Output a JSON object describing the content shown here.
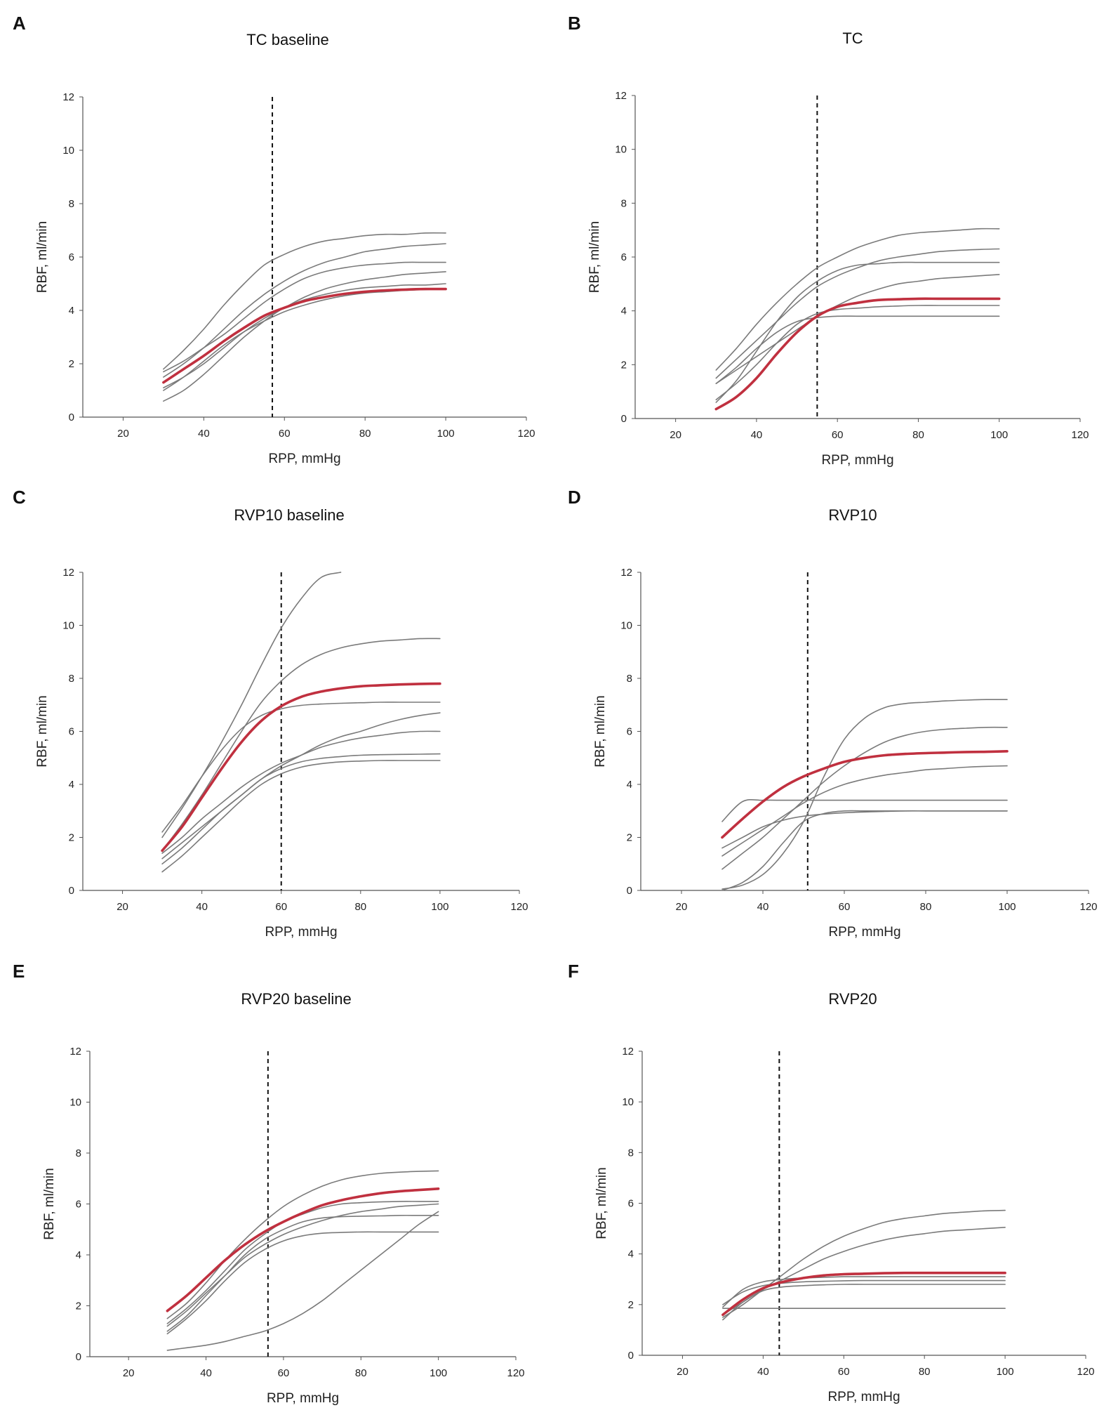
{
  "figure": {
    "panels": [
      {
        "letter": "A",
        "title": "TC baseline"
      },
      {
        "letter": "B",
        "title": "TC"
      },
      {
        "letter": "C",
        "title": "RVP10 baseline"
      },
      {
        "letter": "D",
        "title": "RVP10"
      },
      {
        "letter": "E",
        "title": "RVP20 baseline"
      },
      {
        "letter": "F",
        "title": "RVP20"
      }
    ]
  },
  "colors": {
    "individual": "#7a7a7a",
    "mean": "#c0303f",
    "threshold": "#111111"
  },
  "chart_data": [
    {
      "type": "line",
      "panel": "A",
      "title": "TC baseline",
      "xlabel": "RPP, mmHg",
      "ylabel": "RBF, ml/min",
      "xlim": [
        10,
        120
      ],
      "ylim": [
        0,
        12
      ],
      "xticks": [
        20,
        40,
        60,
        80,
        100,
        120
      ],
      "yticks": [
        0,
        2,
        4,
        6,
        8,
        10,
        12
      ],
      "threshold_x": 57,
      "x": [
        30,
        35,
        40,
        45,
        50,
        55,
        60,
        65,
        70,
        75,
        80,
        85,
        90,
        95,
        100
      ],
      "series": [
        {
          "name": "individual",
          "values": [
            1.8,
            2.5,
            3.3,
            4.2,
            5.0,
            5.7,
            6.1,
            6.4,
            6.6,
            6.7,
            6.8,
            6.85,
            6.85,
            6.9,
            6.9
          ]
        },
        {
          "name": "individual",
          "values": [
            1.5,
            2.0,
            2.6,
            3.3,
            4.0,
            4.6,
            5.1,
            5.5,
            5.8,
            6.0,
            6.2,
            6.3,
            6.4,
            6.45,
            6.5
          ]
        },
        {
          "name": "individual",
          "values": [
            1.7,
            2.1,
            2.6,
            3.1,
            3.7,
            4.3,
            4.8,
            5.2,
            5.45,
            5.6,
            5.7,
            5.75,
            5.8,
            5.8,
            5.8
          ]
        },
        {
          "name": "individual",
          "values": [
            1.1,
            1.5,
            2.0,
            2.6,
            3.2,
            3.7,
            4.1,
            4.5,
            4.8,
            5.0,
            5.15,
            5.25,
            5.35,
            5.4,
            5.45
          ]
        },
        {
          "name": "individual",
          "values": [
            0.6,
            1.0,
            1.6,
            2.3,
            3.0,
            3.6,
            4.1,
            4.4,
            4.6,
            4.75,
            4.85,
            4.9,
            4.95,
            4.95,
            5.0
          ]
        },
        {
          "name": "individual",
          "values": [
            1.0,
            1.5,
            2.1,
            2.7,
            3.2,
            3.6,
            3.95,
            4.2,
            4.4,
            4.55,
            4.65,
            4.7,
            4.75,
            4.78,
            4.8
          ]
        },
        {
          "name": "mean",
          "values": [
            1.3,
            1.8,
            2.3,
            2.85,
            3.35,
            3.8,
            4.1,
            4.35,
            4.5,
            4.62,
            4.7,
            4.75,
            4.78,
            4.8,
            4.8
          ]
        }
      ]
    },
    {
      "type": "line",
      "panel": "B",
      "title": "TC",
      "xlabel": "RPP, mmHg",
      "ylabel": "RBF, ml/min",
      "xlim": [
        10,
        120
      ],
      "ylim": [
        0,
        12
      ],
      "xticks": [
        20,
        40,
        60,
        80,
        100,
        120
      ],
      "yticks": [
        0,
        2,
        4,
        6,
        8,
        10,
        12
      ],
      "threshold_x": 55,
      "x": [
        30,
        35,
        40,
        45,
        50,
        55,
        60,
        65,
        70,
        75,
        80,
        85,
        90,
        95,
        100
      ],
      "series": [
        {
          "name": "individual",
          "values": [
            1.8,
            2.6,
            3.5,
            4.3,
            5.0,
            5.6,
            6.0,
            6.35,
            6.6,
            6.8,
            6.9,
            6.95,
            7.0,
            7.05,
            7.05
          ]
        },
        {
          "name": "individual",
          "values": [
            1.5,
            2.2,
            2.9,
            3.6,
            4.3,
            4.9,
            5.3,
            5.6,
            5.85,
            6.0,
            6.1,
            6.2,
            6.25,
            6.28,
            6.3
          ]
        },
        {
          "name": "individual",
          "values": [
            0.6,
            1.4,
            2.5,
            3.6,
            4.5,
            5.1,
            5.5,
            5.7,
            5.75,
            5.8,
            5.8,
            5.8,
            5.8,
            5.8,
            5.8
          ]
        },
        {
          "name": "individual",
          "values": [
            1.3,
            1.8,
            2.3,
            2.8,
            3.3,
            3.8,
            4.2,
            4.55,
            4.8,
            5.0,
            5.1,
            5.2,
            5.25,
            5.3,
            5.35
          ]
        },
        {
          "name": "individual",
          "values": [
            0.7,
            1.3,
            2.0,
            2.8,
            3.5,
            3.9,
            4.05,
            4.1,
            4.15,
            4.18,
            4.2,
            4.2,
            4.2,
            4.2,
            4.2
          ]
        },
        {
          "name": "individual",
          "values": [
            1.3,
            1.9,
            2.6,
            3.2,
            3.6,
            3.75,
            3.8,
            3.8,
            3.8,
            3.8,
            3.8,
            3.8,
            3.8,
            3.8,
            3.8
          ]
        },
        {
          "name": "mean",
          "values": [
            0.35,
            0.8,
            1.5,
            2.4,
            3.2,
            3.8,
            4.15,
            4.3,
            4.4,
            4.43,
            4.45,
            4.45,
            4.45,
            4.45,
            4.45
          ]
        }
      ]
    },
    {
      "type": "line",
      "panel": "C",
      "title": "RVP10 baseline",
      "xlabel": "RPP, mmHg",
      "ylabel": "RBF, ml/min",
      "xlim": [
        10,
        120
      ],
      "ylim": [
        0,
        12
      ],
      "xticks": [
        20,
        40,
        60,
        80,
        100,
        120
      ],
      "yticks": [
        0,
        2,
        4,
        6,
        8,
        10,
        12
      ],
      "threshold_x": 60,
      "x": [
        30,
        35,
        40,
        45,
        50,
        55,
        60,
        65,
        70,
        75,
        80,
        85,
        90,
        95,
        100
      ],
      "series": [
        {
          "name": "individual",
          "values": [
            2.0,
            3.1,
            4.3,
            5.6,
            7.0,
            8.5,
            9.9,
            11.0,
            11.8,
            12.0,
            null,
            null,
            null,
            null,
            null
          ]
        },
        {
          "name": "individual",
          "values": [
            1.5,
            2.5,
            3.6,
            4.8,
            6.0,
            7.1,
            7.9,
            8.5,
            8.9,
            9.15,
            9.3,
            9.4,
            9.45,
            9.5,
            9.5
          ]
        },
        {
          "name": "individual",
          "values": [
            2.2,
            3.2,
            4.3,
            5.3,
            6.1,
            6.6,
            6.85,
            6.98,
            7.03,
            7.06,
            7.08,
            7.1,
            7.1,
            7.1,
            7.1
          ]
        },
        {
          "name": "individual",
          "values": [
            1.2,
            1.8,
            2.4,
            3.0,
            3.6,
            4.2,
            4.7,
            5.1,
            5.5,
            5.8,
            6.0,
            6.25,
            6.45,
            6.6,
            6.7
          ]
        },
        {
          "name": "individual",
          "values": [
            1.4,
            2.0,
            2.7,
            3.3,
            3.9,
            4.4,
            4.8,
            5.1,
            5.4,
            5.6,
            5.75,
            5.85,
            5.95,
            6.0,
            6.0
          ]
        },
        {
          "name": "individual",
          "values": [
            1.0,
            1.6,
            2.3,
            3.0,
            3.6,
            4.2,
            4.6,
            4.85,
            4.98,
            5.05,
            5.1,
            5.12,
            5.13,
            5.14,
            5.15
          ]
        },
        {
          "name": "individual",
          "values": [
            0.7,
            1.3,
            2.0,
            2.7,
            3.4,
            4.0,
            4.4,
            4.65,
            4.78,
            4.85,
            4.88,
            4.9,
            4.9,
            4.9,
            4.9
          ]
        },
        {
          "name": "mean",
          "values": [
            1.5,
            2.4,
            3.5,
            4.6,
            5.6,
            6.4,
            6.95,
            7.3,
            7.5,
            7.62,
            7.7,
            7.74,
            7.77,
            7.79,
            7.8
          ]
        }
      ]
    },
    {
      "type": "line",
      "panel": "D",
      "title": "RVP10",
      "xlabel": "RPP, mmHg",
      "ylabel": "RBF, ml/min",
      "xlim": [
        10,
        120
      ],
      "ylim": [
        0,
        12
      ],
      "xticks": [
        20,
        40,
        60,
        80,
        100,
        120
      ],
      "yticks": [
        0,
        2,
        4,
        6,
        8,
        10,
        12
      ],
      "threshold_x": 51,
      "x": [
        30,
        35,
        40,
        45,
        50,
        55,
        60,
        65,
        70,
        75,
        80,
        85,
        90,
        95,
        100
      ],
      "series": [
        {
          "name": "individual",
          "values": [
            0.05,
            0.2,
            0.6,
            1.4,
            2.6,
            4.3,
            5.7,
            6.5,
            6.9,
            7.05,
            7.1,
            7.15,
            7.18,
            7.2,
            7.2
          ]
        },
        {
          "name": "individual",
          "values": [
            0.8,
            1.4,
            2.0,
            2.7,
            3.4,
            4.1,
            4.7,
            5.2,
            5.6,
            5.85,
            6.0,
            6.08,
            6.12,
            6.15,
            6.15
          ]
        },
        {
          "name": "individual",
          "values": [
            1.3,
            1.8,
            2.3,
            2.8,
            3.3,
            3.7,
            4.0,
            4.2,
            4.35,
            4.45,
            4.55,
            4.6,
            4.65,
            4.68,
            4.7
          ]
        },
        {
          "name": "individual",
          "values": [
            2.6,
            3.35,
            3.4,
            3.4,
            3.4,
            3.4,
            3.4,
            3.4,
            3.4,
            3.4,
            3.4,
            3.4,
            3.4,
            3.4,
            3.4
          ]
        },
        {
          "name": "individual",
          "values": [
            1.6,
            2.0,
            2.4,
            2.65,
            2.8,
            2.88,
            2.93,
            2.96,
            2.98,
            3.0,
            3.0,
            3.0,
            3.0,
            3.0,
            3.0
          ]
        },
        {
          "name": "individual",
          "values": [
            0.0,
            0.3,
            0.9,
            1.8,
            2.6,
            2.9,
            3.0,
            3.0,
            3.0,
            3.0,
            3.0,
            3.0,
            3.0,
            3.0,
            3.0
          ]
        },
        {
          "name": "mean",
          "values": [
            2.0,
            2.7,
            3.35,
            3.9,
            4.3,
            4.6,
            4.85,
            5.0,
            5.1,
            5.15,
            5.18,
            5.2,
            5.22,
            5.23,
            5.25
          ]
        }
      ]
    },
    {
      "type": "line",
      "panel": "E",
      "title": "RVP20 baseline",
      "xlabel": "RPP, mmHg",
      "ylabel": "RBF, ml/min",
      "xlim": [
        10,
        120
      ],
      "ylim": [
        0,
        12
      ],
      "xticks": [
        20,
        40,
        60,
        80,
        100,
        120
      ],
      "yticks": [
        0,
        2,
        4,
        6,
        8,
        10,
        12
      ],
      "threshold_x": 56,
      "x": [
        30,
        35,
        40,
        45,
        50,
        55,
        60,
        65,
        70,
        75,
        80,
        85,
        90,
        95,
        100
      ],
      "series": [
        {
          "name": "individual",
          "values": [
            1.5,
            2.1,
            2.9,
            3.8,
            4.6,
            5.3,
            5.9,
            6.35,
            6.7,
            6.95,
            7.1,
            7.2,
            7.25,
            7.28,
            7.3
          ]
        },
        {
          "name": "individual",
          "values": [
            1.3,
            1.9,
            2.6,
            3.4,
            4.2,
            4.8,
            5.3,
            5.6,
            5.85,
            6.0,
            6.05,
            6.08,
            6.1,
            6.1,
            6.1
          ]
        },
        {
          "name": "individual",
          "values": [
            1.0,
            1.6,
            2.4,
            3.2,
            4.0,
            4.6,
            5.0,
            5.3,
            5.45,
            5.5,
            5.52,
            5.53,
            5.55,
            5.55,
            5.55
          ]
        },
        {
          "name": "individual",
          "values": [
            0.9,
            1.5,
            2.2,
            3.0,
            3.7,
            4.2,
            4.55,
            4.75,
            4.85,
            4.88,
            4.9,
            4.9,
            4.9,
            4.9,
            4.9
          ]
        },
        {
          "name": "individual",
          "values": [
            1.2,
            1.8,
            2.5,
            3.2,
            3.9,
            4.4,
            4.8,
            5.1,
            5.35,
            5.55,
            5.7,
            5.8,
            5.9,
            5.95,
            6.0
          ]
        },
        {
          "name": "individual",
          "values": [
            0.25,
            0.35,
            0.45,
            0.6,
            0.8,
            1.0,
            1.3,
            1.7,
            2.2,
            2.8,
            3.4,
            4.0,
            4.6,
            5.2,
            5.7
          ]
        },
        {
          "name": "mean",
          "values": [
            1.8,
            2.4,
            3.1,
            3.8,
            4.4,
            4.9,
            5.3,
            5.65,
            5.95,
            6.15,
            6.3,
            6.42,
            6.5,
            6.55,
            6.6
          ]
        }
      ]
    },
    {
      "type": "line",
      "panel": "F",
      "title": "RVP20",
      "xlabel": "RPP, mmHg",
      "ylabel": "RBF, ml/min",
      "xlim": [
        10,
        120
      ],
      "ylim": [
        0,
        12
      ],
      "xticks": [
        20,
        40,
        60,
        80,
        100,
        120
      ],
      "yticks": [
        0,
        2,
        4,
        6,
        8,
        10,
        12
      ],
      "threshold_x": 44,
      "x": [
        30,
        35,
        40,
        45,
        50,
        55,
        60,
        65,
        70,
        75,
        80,
        85,
        90,
        95,
        100
      ],
      "series": [
        {
          "name": "individual",
          "values": [
            1.5,
            2.0,
            2.6,
            3.2,
            3.8,
            4.3,
            4.7,
            5.0,
            5.25,
            5.4,
            5.5,
            5.6,
            5.65,
            5.7,
            5.72
          ]
        },
        {
          "name": "individual",
          "values": [
            1.6,
            2.1,
            2.6,
            3.0,
            3.4,
            3.8,
            4.1,
            4.35,
            4.55,
            4.7,
            4.8,
            4.9,
            4.95,
            5.0,
            5.05
          ]
        },
        {
          "name": "individual",
          "values": [
            1.9,
            2.6,
            2.9,
            3.0,
            3.05,
            3.08,
            3.1,
            3.1,
            3.1,
            3.1,
            3.1,
            3.1,
            3.1,
            3.1,
            3.1
          ]
        },
        {
          "name": "individual",
          "values": [
            2.0,
            2.5,
            2.75,
            2.85,
            2.9,
            2.92,
            2.94,
            2.95,
            2.95,
            2.95,
            2.95,
            2.95,
            2.95,
            2.95,
            2.95
          ]
        },
        {
          "name": "individual",
          "values": [
            1.4,
            2.1,
            2.55,
            2.7,
            2.75,
            2.78,
            2.8,
            2.8,
            2.8,
            2.8,
            2.8,
            2.8,
            2.8,
            2.8,
            2.8
          ]
        },
        {
          "name": "individual",
          "values": [
            1.85,
            1.85,
            1.85,
            1.85,
            1.85,
            1.85,
            1.85,
            1.85,
            1.85,
            1.85,
            1.85,
            1.85,
            1.85,
            1.85,
            1.85
          ]
        },
        {
          "name": "mean",
          "values": [
            1.6,
            2.2,
            2.65,
            2.9,
            3.05,
            3.15,
            3.2,
            3.22,
            3.24,
            3.25,
            3.25,
            3.25,
            3.25,
            3.25,
            3.25
          ]
        }
      ]
    }
  ]
}
